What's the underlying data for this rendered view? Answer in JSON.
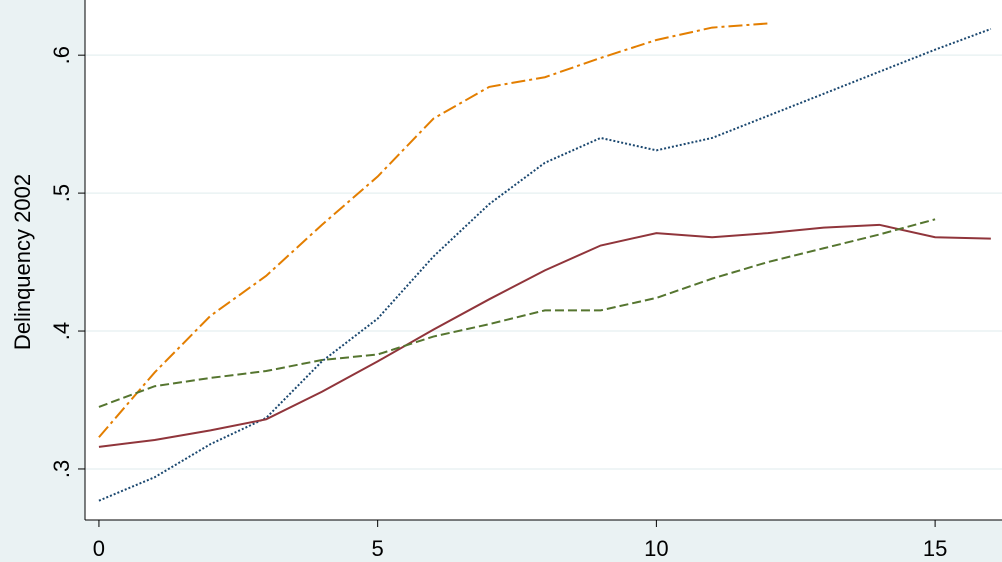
{
  "chart_data": {
    "type": "line",
    "ylabel": "Delinquency 2002",
    "xlim": [
      -0.25,
      16.2
    ],
    "ylim": [
      0.263,
      0.64
    ],
    "xticks": [
      0,
      5,
      10,
      15
    ],
    "yticks": [
      {
        "value": 0.3,
        "label": ".3"
      },
      {
        "value": 0.4,
        "label": ".4"
      },
      {
        "value": 0.5,
        "label": ".5"
      },
      {
        "value": 0.6,
        "label": ".6"
      }
    ],
    "grid": true,
    "series": [
      {
        "color": "#e37e00",
        "dash": "14,4,3,4",
        "x": [
          0,
          1,
          2,
          3,
          4,
          5,
          6,
          7,
          8,
          9,
          10,
          11,
          12
        ],
        "values": [
          0.323,
          0.37,
          0.411,
          0.44,
          0.477,
          0.512,
          0.554,
          0.577,
          0.584,
          0.598,
          0.611,
          0.62,
          0.623
        ]
      },
      {
        "color": "#1a476f",
        "dash": "2,2",
        "x": [
          0,
          1,
          2,
          3,
          4,
          5,
          6,
          7,
          8,
          9,
          10,
          11,
          12,
          13,
          14,
          15,
          16
        ],
        "values": [
          0.277,
          0.294,
          0.318,
          0.337,
          0.378,
          0.409,
          0.454,
          0.492,
          0.522,
          0.54,
          0.531,
          0.54,
          0.556,
          0.572,
          0.588,
          0.604,
          0.619
        ]
      },
      {
        "color": "#90353b",
        "dash": "",
        "x": [
          0,
          1,
          2,
          3,
          4,
          5,
          6,
          7,
          8,
          9,
          10,
          11,
          12,
          13,
          14,
          15,
          16
        ],
        "values": [
          0.316,
          0.321,
          0.328,
          0.336,
          0.356,
          0.378,
          0.401,
          0.423,
          0.444,
          0.462,
          0.471,
          0.468,
          0.471,
          0.475,
          0.477,
          0.468,
          0.467
        ]
      },
      {
        "color": "#55752f",
        "dash": "9,4",
        "x": [
          0,
          1,
          2,
          3,
          4,
          5,
          6,
          7,
          8,
          9,
          10,
          11,
          12,
          13,
          14,
          15
        ],
        "values": [
          0.345,
          0.36,
          0.366,
          0.371,
          0.379,
          0.383,
          0.396,
          0.405,
          0.415,
          0.415,
          0.424,
          0.438,
          0.45,
          0.46,
          0.47,
          0.481
        ]
      }
    ]
  }
}
